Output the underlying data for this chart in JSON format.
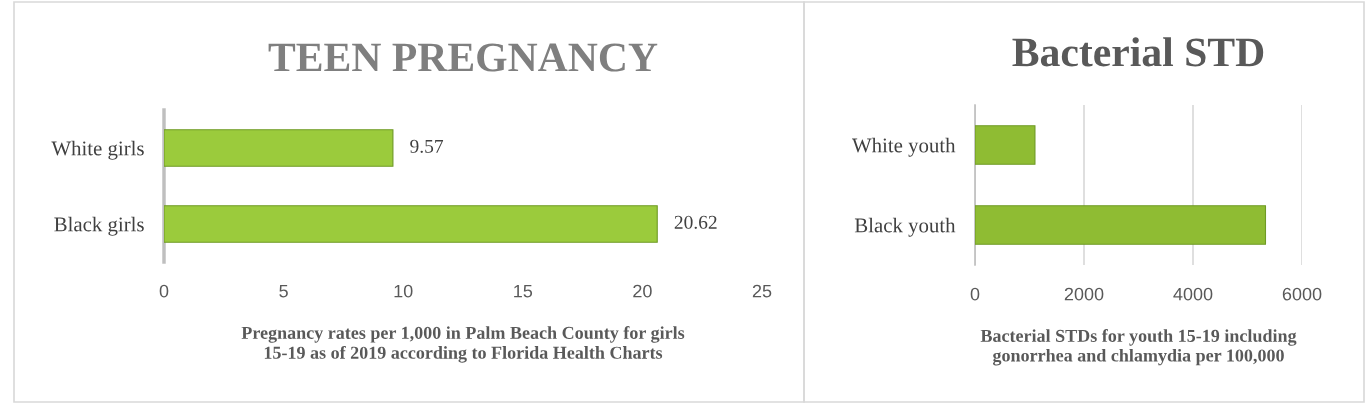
{
  "chart_data": [
    {
      "type": "bar",
      "orientation": "horizontal",
      "title": "TEEN PREGNANCY",
      "xlabel": "Pregnancy rates per 1,000 in Palm Beach County for girls\n15-19 as of 2019 according to Florida Health Charts",
      "categories": [
        "White girls",
        "Black girls"
      ],
      "values": [
        9.57,
        20.62
      ],
      "color": "#9bcb3c",
      "xlim": [
        0,
        25
      ],
      "xticks": [
        0,
        5,
        10,
        15,
        20,
        25
      ],
      "data_labels": true,
      "grid": false
    },
    {
      "type": "bar",
      "orientation": "horizontal",
      "title": "Bacterial STD",
      "xlabel": "Bacterial STDs for youth 15-19 including\ngonorrhea and chlamydia per 100,000",
      "categories": [
        "White youth",
        "Black youth"
      ],
      "values": [
        1100,
        5330
      ],
      "color": "#8fbc33",
      "xlim": [
        0,
        6000
      ],
      "xticks": [
        0,
        2000,
        4000,
        6000
      ],
      "grid": "x"
    }
  ]
}
